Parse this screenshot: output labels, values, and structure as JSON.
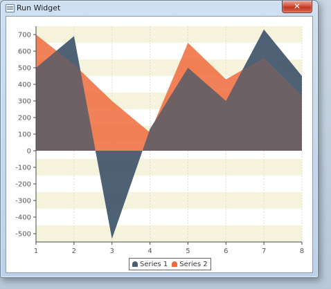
{
  "window": {
    "title": "Run Widget",
    "close_symbol": "✕"
  },
  "colors": {
    "series1": "#4a5e72",
    "series2": "#ee6b3b",
    "band": "#f5f3dc",
    "grid": "#dcdcdc"
  },
  "chart_data": {
    "type": "area",
    "x": [
      1,
      2,
      3,
      4,
      5,
      6,
      7,
      8
    ],
    "series": [
      {
        "name": "Series 1",
        "values": [
          500,
          690,
          -530,
          130,
          500,
          300,
          730,
          450
        ]
      },
      {
        "name": "Series 2",
        "values": [
          700,
          520,
          300,
          110,
          650,
          430,
          560,
          330
        ]
      }
    ],
    "xlim": [
      1,
      8
    ],
    "ylim": [
      -550,
      750
    ],
    "y_ticks": [
      -500,
      -400,
      -300,
      -200,
      -100,
      0,
      100,
      200,
      300,
      400,
      500,
      600,
      700
    ],
    "x_ticks": [
      1,
      2,
      3,
      4,
      5,
      6,
      7,
      8
    ],
    "grid": true,
    "alternating_bands": true,
    "legend": "bottom-center"
  }
}
